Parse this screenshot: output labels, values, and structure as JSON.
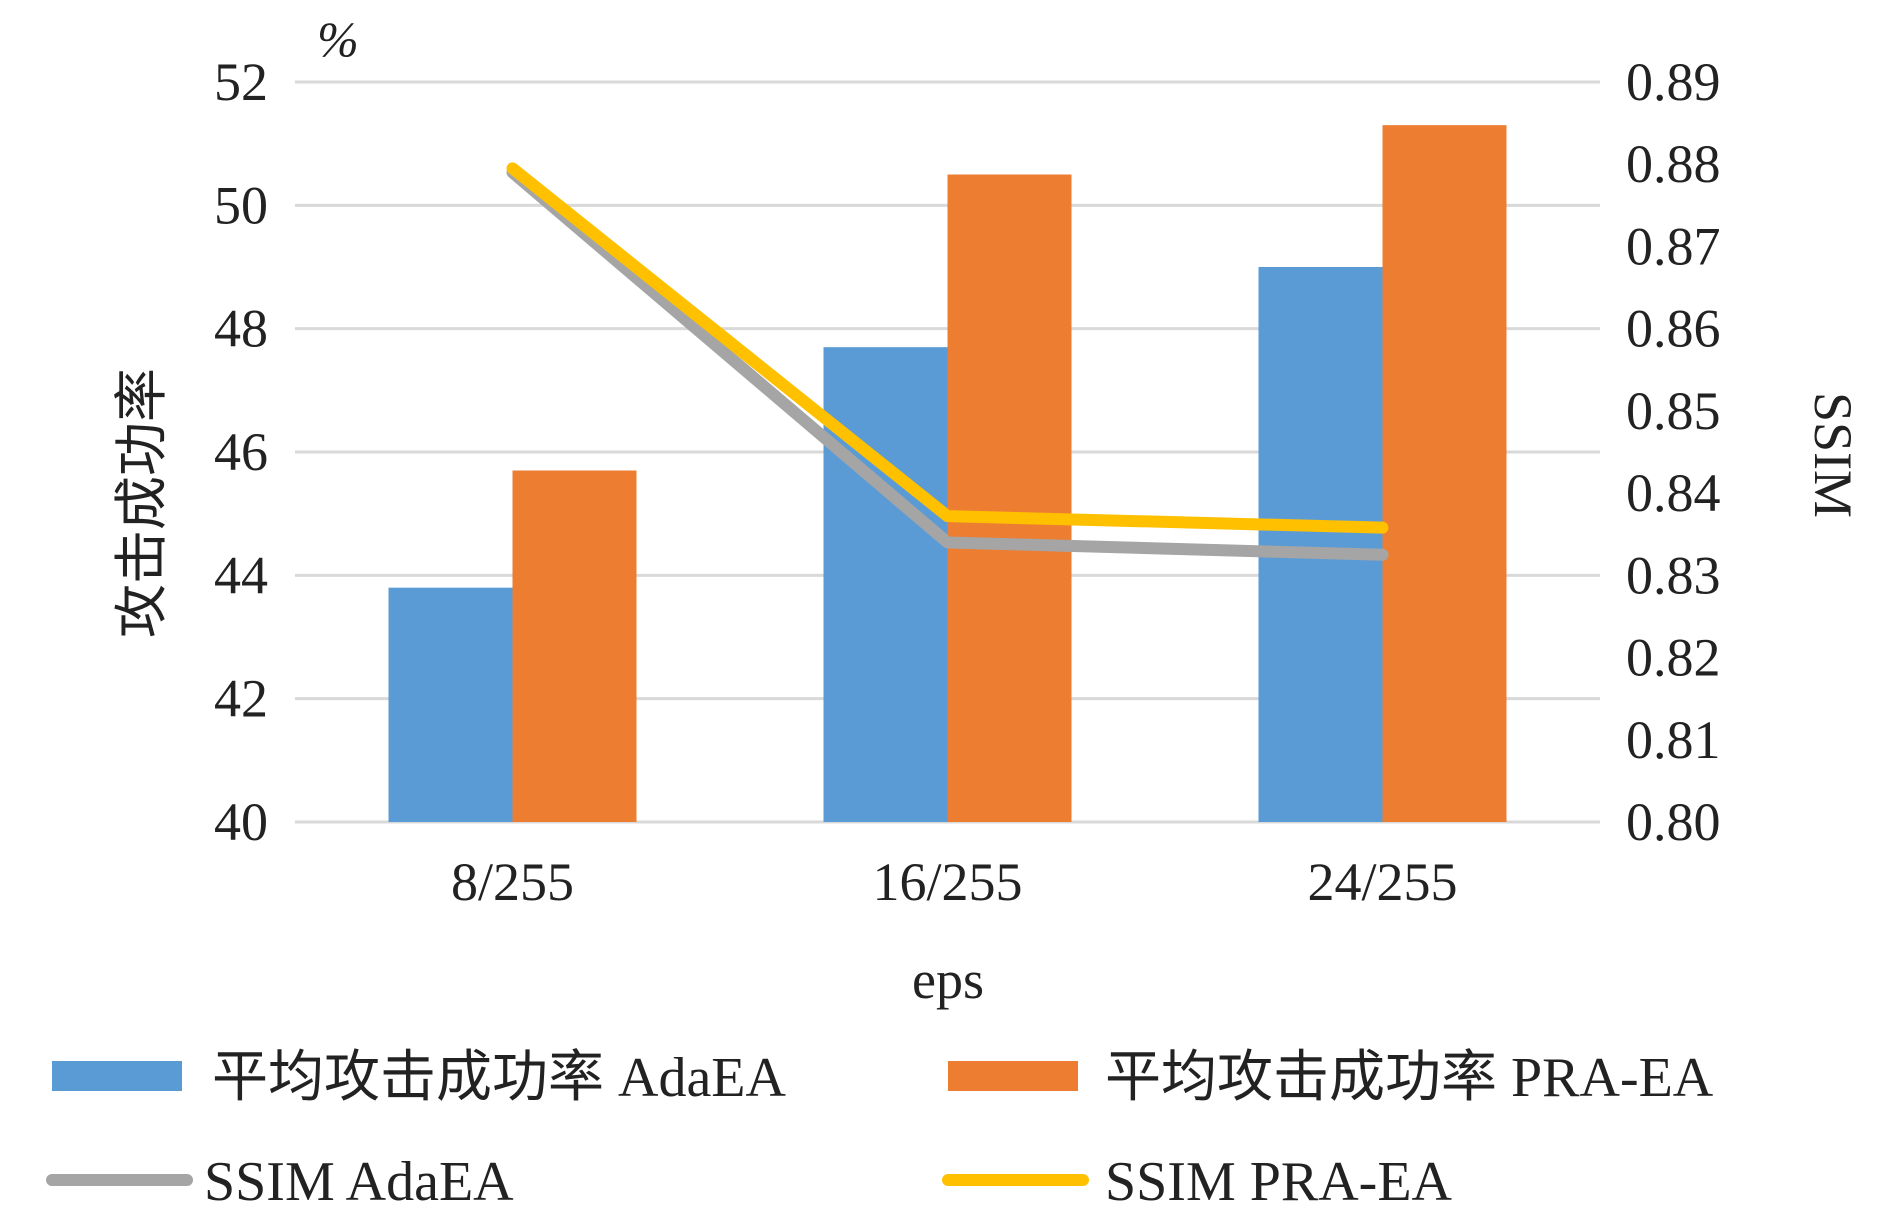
{
  "chart_data": {
    "type": "bar",
    "categories": [
      "8/255",
      "16/255",
      "24/255"
    ],
    "xlabel": "eps",
    "ylabel": "攻击成功率",
    "y_unit": "%",
    "y2label": "SSIM",
    "ylim": [
      40,
      52
    ],
    "y2lim": [
      0.8,
      0.89
    ],
    "y_ticks": [
      "40",
      "42",
      "44",
      "46",
      "48",
      "50",
      "52"
    ],
    "y2_ticks": [
      "0.80",
      "0.81",
      "0.82",
      "0.83",
      "0.84",
      "0.85",
      "0.86",
      "0.87",
      "0.88",
      "0.89"
    ],
    "grid": true,
    "legend_position": "bottom",
    "series": [
      {
        "name": "平均攻击成功率 AdaEA",
        "kind": "bar",
        "axis": "left",
        "color": "#5B9BD5",
        "values": [
          43.8,
          47.7,
          49.0
        ]
      },
      {
        "name": "平均攻击成功率 PRA-EA",
        "kind": "bar",
        "axis": "left",
        "color": "#ED7D31",
        "values": [
          45.7,
          50.5,
          51.3
        ]
      },
      {
        "name": "SSIM AdaEA",
        "kind": "line",
        "axis": "right",
        "color": "#A5A5A5",
        "values": [
          0.879,
          0.834,
          0.8325
        ]
      },
      {
        "name": "SSIM PRA-EA",
        "kind": "line",
        "axis": "right",
        "color": "#FFC000",
        "values": [
          0.8795,
          0.8372,
          0.8358
        ]
      }
    ]
  }
}
